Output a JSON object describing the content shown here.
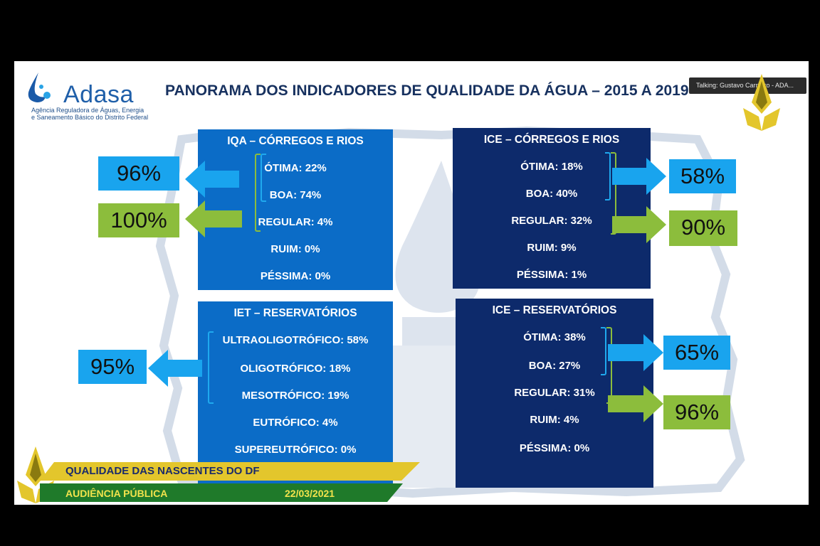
{
  "header": {
    "logo_name": "Adasa",
    "logo_subtitle_line1": "Agência Reguladora de Águas, Energia",
    "logo_subtitle_line2": "e Saneamento Básico do Distrito Federal",
    "title": "PANORAMA DOS INDICADORES DE QUALIDADE DA ÁGUA – 2015 A 2019"
  },
  "meeting": {
    "talking_label": "Talking: Gustavo Carneiro - ADA..."
  },
  "panels": {
    "iqa": {
      "title": "IQA – CÓRREGOS E RIOS",
      "rows": [
        "ÓTIMA: 22%",
        "BOA: 74%",
        "REGULAR: 4%",
        "RUIM: 0%",
        "PÉSSIMA: 0%"
      ],
      "summary_top": "96%",
      "summary_bottom": "100%"
    },
    "ice_rios": {
      "title": "ICE – CÓRREGOS E RIOS",
      "rows": [
        "ÓTIMA: 18%",
        "BOA: 40%",
        "REGULAR: 32%",
        "RUIM: 9%",
        "PÉSSIMA: 1%"
      ],
      "summary_top": "58%",
      "summary_bottom": "90%"
    },
    "iet": {
      "title": "IET – RESERVATÓRIOS",
      "rows": [
        "ULTRAOLIGOTRÓFICO: 58%",
        "OLIGOTRÓFICO: 18%",
        "MESOTRÓFICO: 19%",
        "EUTRÓFICO: 4%",
        "SUPEREUTRÓFICO: 0%"
      ],
      "summary": "95%"
    },
    "ice_res": {
      "title": "ICE – RESERVATÓRIOS",
      "rows": [
        "ÓTIMA: 38%",
        "BOA: 27%",
        "REGULAR: 31%",
        "RUIM: 4%",
        "PÉSSIMA: 0%"
      ],
      "summary_top": "65%",
      "summary_bottom": "96%"
    }
  },
  "banner": {
    "line1": "QUALIDADE DAS NASCENTES DO DF",
    "line2": "AUDIÊNCIA PÚBLICA",
    "date": "22/03/2021"
  },
  "colors": {
    "blue_panel": "#0b6cc7",
    "navy_panel": "#0d2a6b",
    "blue_tag": "#19a4ee",
    "green_tag": "#8cbd3c",
    "gold": "#e3c62c"
  }
}
